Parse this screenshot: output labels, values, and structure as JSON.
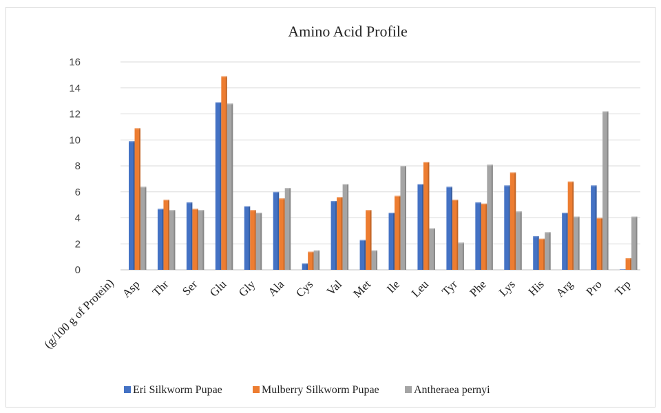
{
  "chart_data": {
    "type": "bar",
    "title": "Amino Acid Profile",
    "ylabel": "",
    "xlabel": "(g/100 g of Protein)",
    "ylim": [
      0,
      16
    ],
    "yticks": [
      0,
      2,
      4,
      6,
      8,
      10,
      12,
      14,
      16
    ],
    "grid": true,
    "legend_position": "bottom",
    "categories": [
      "Asp",
      "Thr",
      "Ser",
      "Glu",
      "Gly",
      "Ala",
      "Cys",
      "Val",
      "Met",
      "Ile",
      "Leu",
      "Tyr",
      "Phe",
      "Lys",
      "His",
      "Arg",
      "Pro",
      "Trp"
    ],
    "series": [
      {
        "name": "Eri Silkworm Pupae",
        "color": "#4472c4",
        "values": [
          9.9,
          4.7,
          5.2,
          12.9,
          4.9,
          6.0,
          0.5,
          5.3,
          2.3,
          4.4,
          6.6,
          6.4,
          5.2,
          6.5,
          2.6,
          4.4,
          6.5,
          0.0
        ]
      },
      {
        "name": "Mulberry Silkworm Pupae",
        "color": "#ed7d31",
        "values": [
          10.9,
          5.4,
          4.7,
          14.9,
          4.6,
          5.5,
          1.4,
          5.6,
          4.6,
          5.7,
          8.3,
          5.4,
          5.1,
          7.5,
          2.4,
          6.8,
          4.0,
          0.9
        ]
      },
      {
        "name": "Antheraea pernyi",
        "color": "#a5a5a5",
        "values": [
          6.4,
          4.6,
          4.6,
          12.8,
          4.4,
          6.3,
          1.5,
          6.6,
          1.5,
          8.0,
          3.2,
          2.1,
          8.1,
          4.5,
          2.9,
          4.1,
          12.2,
          4.1
        ]
      }
    ]
  }
}
